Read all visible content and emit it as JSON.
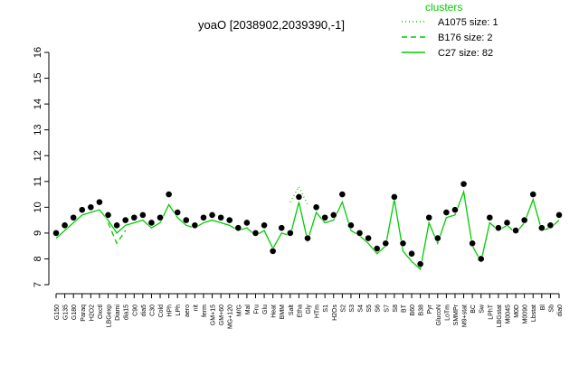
{
  "chart_data": {
    "type": "line",
    "title": "yoaO [2038902,2039390,-1]",
    "legend_title": "clusters",
    "categories": [
      "G150",
      "G135",
      "G180",
      "Paraq",
      "H2O2",
      "Oxctl",
      "LBGexp",
      "Diami",
      "dia15",
      "C90",
      "dia5",
      "C30",
      "Cold",
      "HPh",
      "LPh",
      "aero",
      "nit",
      "ferm",
      "GM+15",
      "GM+60",
      "MG+120",
      "M/G",
      "Mal",
      "Fru",
      "Glu",
      "Heat",
      "BMM",
      "Salt",
      "Etha",
      "Gly",
      "HTm",
      "S1",
      "H2Os",
      "S2",
      "S3",
      "S4",
      "S5",
      "S6",
      "S7",
      "S8",
      "BT",
      "B60",
      "B38",
      "Pyr",
      "GlucoN",
      "LoTm",
      "SMMPr",
      "M9+stat",
      "BC",
      "Sw",
      "LPhT",
      "LBGstat",
      "M0045",
      "M0D",
      "M0090",
      "Lbstat",
      "Bl",
      "Sb",
      "dia0"
    ],
    "points": {
      "color": "#000000",
      "values": [
        9.0,
        9.3,
        9.6,
        9.9,
        10.0,
        10.2,
        9.7,
        9.3,
        9.5,
        9.6,
        9.7,
        9.4,
        9.6,
        10.5,
        9.8,
        9.5,
        9.3,
        9.6,
        9.7,
        9.6,
        9.5,
        9.2,
        9.4,
        9.0,
        9.3,
        8.3,
        9.2,
        9.0,
        10.4,
        8.8,
        10.0,
        9.6,
        9.7,
        10.5,
        9.3,
        9.0,
        8.8,
        8.4,
        8.6,
        10.4,
        8.6,
        8.2,
        7.8,
        9.6,
        8.8,
        9.8,
        9.9,
        10.9,
        8.6,
        8.0,
        9.6,
        9.2,
        9.4,
        9.1,
        9.5,
        10.5,
        9.2,
        9.3,
        9.7
      ]
    },
    "series": [
      {
        "name": "A1075 size: 1",
        "color": "#00cc00",
        "style": "dotted",
        "values": [
          null,
          null,
          null,
          null,
          null,
          null,
          null,
          null,
          null,
          null,
          null,
          null,
          null,
          null,
          null,
          null,
          null,
          null,
          null,
          null,
          null,
          null,
          null,
          null,
          null,
          null,
          null,
          10.2,
          10.8,
          10.1,
          null,
          null,
          null,
          null,
          null,
          null,
          null,
          null,
          null,
          null,
          null,
          null,
          null,
          null,
          null,
          null,
          null,
          null,
          null,
          null,
          null,
          null,
          null,
          null,
          null,
          null,
          null,
          null,
          null
        ]
      },
      {
        "name": "B176 size: 2",
        "color": "#00cc00",
        "style": "dashed",
        "values": [
          null,
          null,
          null,
          null,
          null,
          null,
          9.4,
          8.6,
          9.1,
          null,
          null,
          null,
          null,
          null,
          null,
          null,
          null,
          null,
          null,
          null,
          null,
          null,
          null,
          null,
          null,
          null,
          null,
          null,
          null,
          null,
          null,
          null,
          null,
          null,
          null,
          null,
          null,
          null,
          null,
          null,
          null,
          null,
          null,
          null,
          null,
          null,
          null,
          null,
          null,
          null,
          null,
          null,
          null,
          null,
          null,
          null,
          null,
          null,
          null
        ]
      },
      {
        "name": "C27 size: 82",
        "color": "#00cc00",
        "style": "solid",
        "values": [
          8.8,
          9.1,
          9.4,
          9.7,
          9.8,
          9.9,
          9.5,
          9.0,
          9.3,
          9.4,
          9.5,
          9.2,
          9.4,
          10.1,
          9.6,
          9.3,
          9.2,
          9.4,
          9.5,
          9.4,
          9.3,
          9.1,
          9.2,
          8.9,
          9.1,
          8.4,
          9.0,
          8.9,
          10.2,
          8.7,
          9.8,
          9.4,
          9.5,
          10.2,
          9.1,
          8.9,
          8.6,
          8.2,
          8.5,
          10.3,
          8.3,
          7.9,
          7.6,
          9.4,
          8.6,
          9.6,
          9.7,
          10.6,
          8.5,
          7.9,
          9.4,
          9.1,
          9.3,
          9.0,
          9.4,
          10.3,
          9.1,
          9.2,
          9.5
        ]
      }
    ],
    "ylim": [
      7,
      16
    ],
    "yticks": [
      7,
      8,
      9,
      10,
      11,
      12,
      13,
      14,
      15,
      16
    ]
  }
}
